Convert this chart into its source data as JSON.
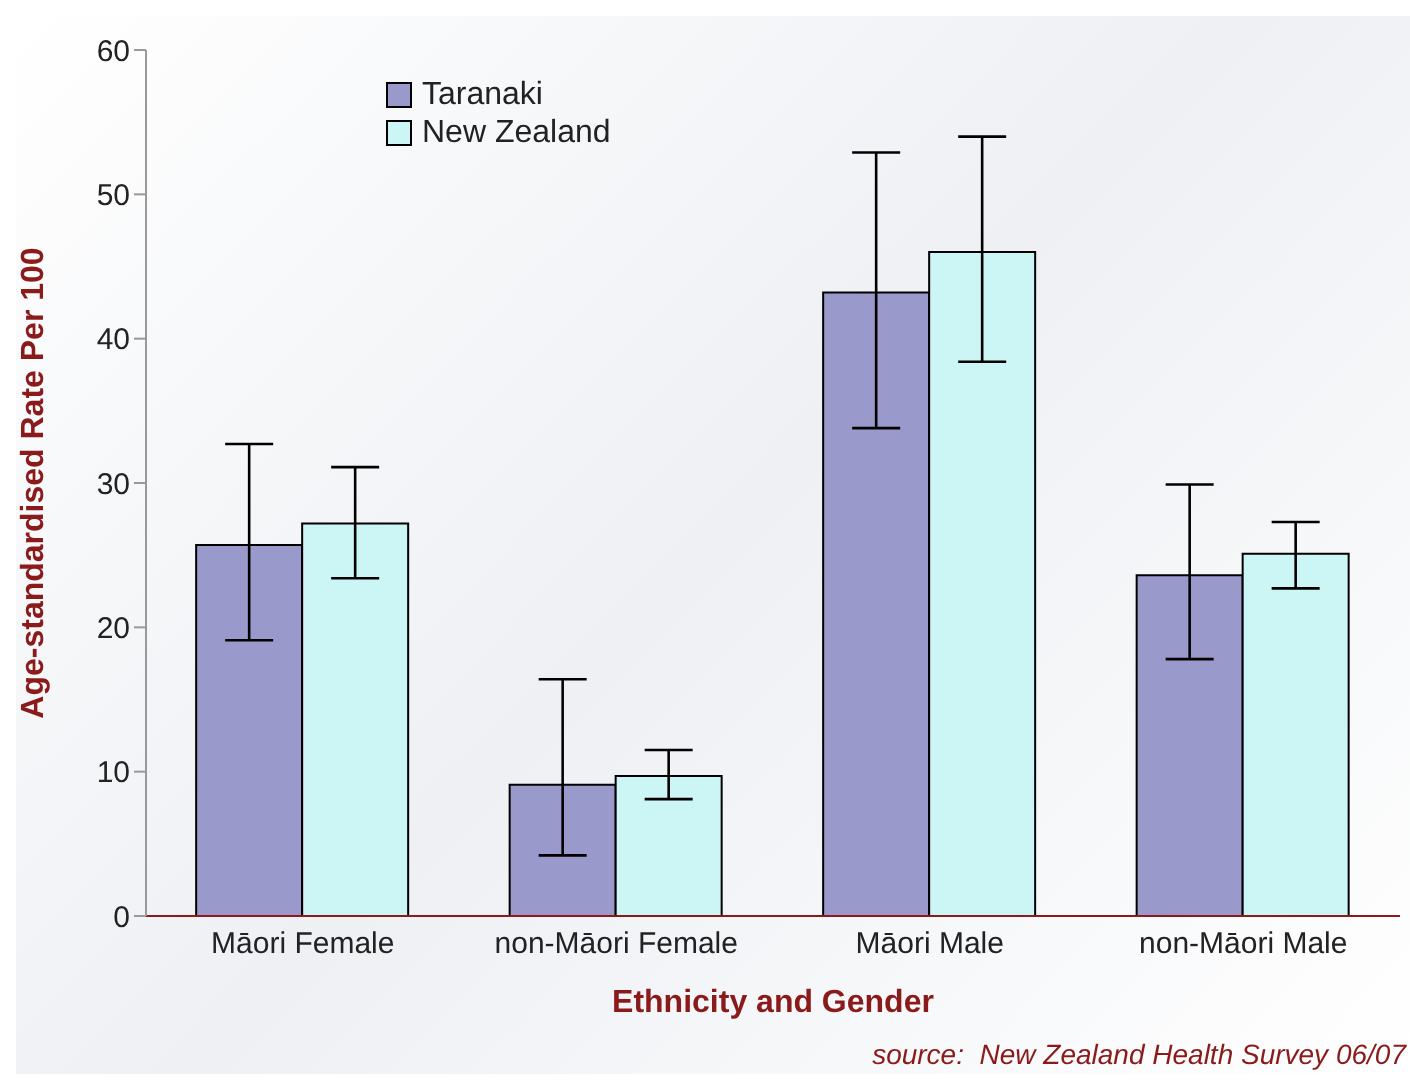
{
  "chart_data": {
    "type": "bar",
    "xlabel": "Ethnicity and Gender",
    "ylabel": "Age-standardised Rate Per 100",
    "categories": [
      "Māori Female",
      "non-Māori Female",
      "Māori Male",
      "non-Māori Male"
    ],
    "series": [
      {
        "name": "Taranaki",
        "color": "#9999cc",
        "values": [
          25.7,
          9.1,
          43.2,
          23.6
        ],
        "errors": [
          [
            19.1,
            32.7
          ],
          [
            4.2,
            16.4
          ],
          [
            33.8,
            52.9
          ],
          [
            17.8,
            29.9
          ]
        ]
      },
      {
        "name": "New Zealand",
        "color": "#ccf5f5",
        "values": [
          27.2,
          9.7,
          46.0,
          25.1
        ],
        "errors": [
          [
            23.4,
            31.1
          ],
          [
            8.1,
            11.5
          ],
          [
            38.4,
            54.0
          ],
          [
            22.7,
            27.3
          ]
        ]
      }
    ],
    "ylim": [
      0,
      60
    ],
    "yticks": [
      0,
      10,
      20,
      30,
      40,
      50,
      60
    ],
    "grid": false,
    "legend": "top left",
    "annotations": [
      "source:  New Zealand Health Survey 06/07"
    ]
  }
}
